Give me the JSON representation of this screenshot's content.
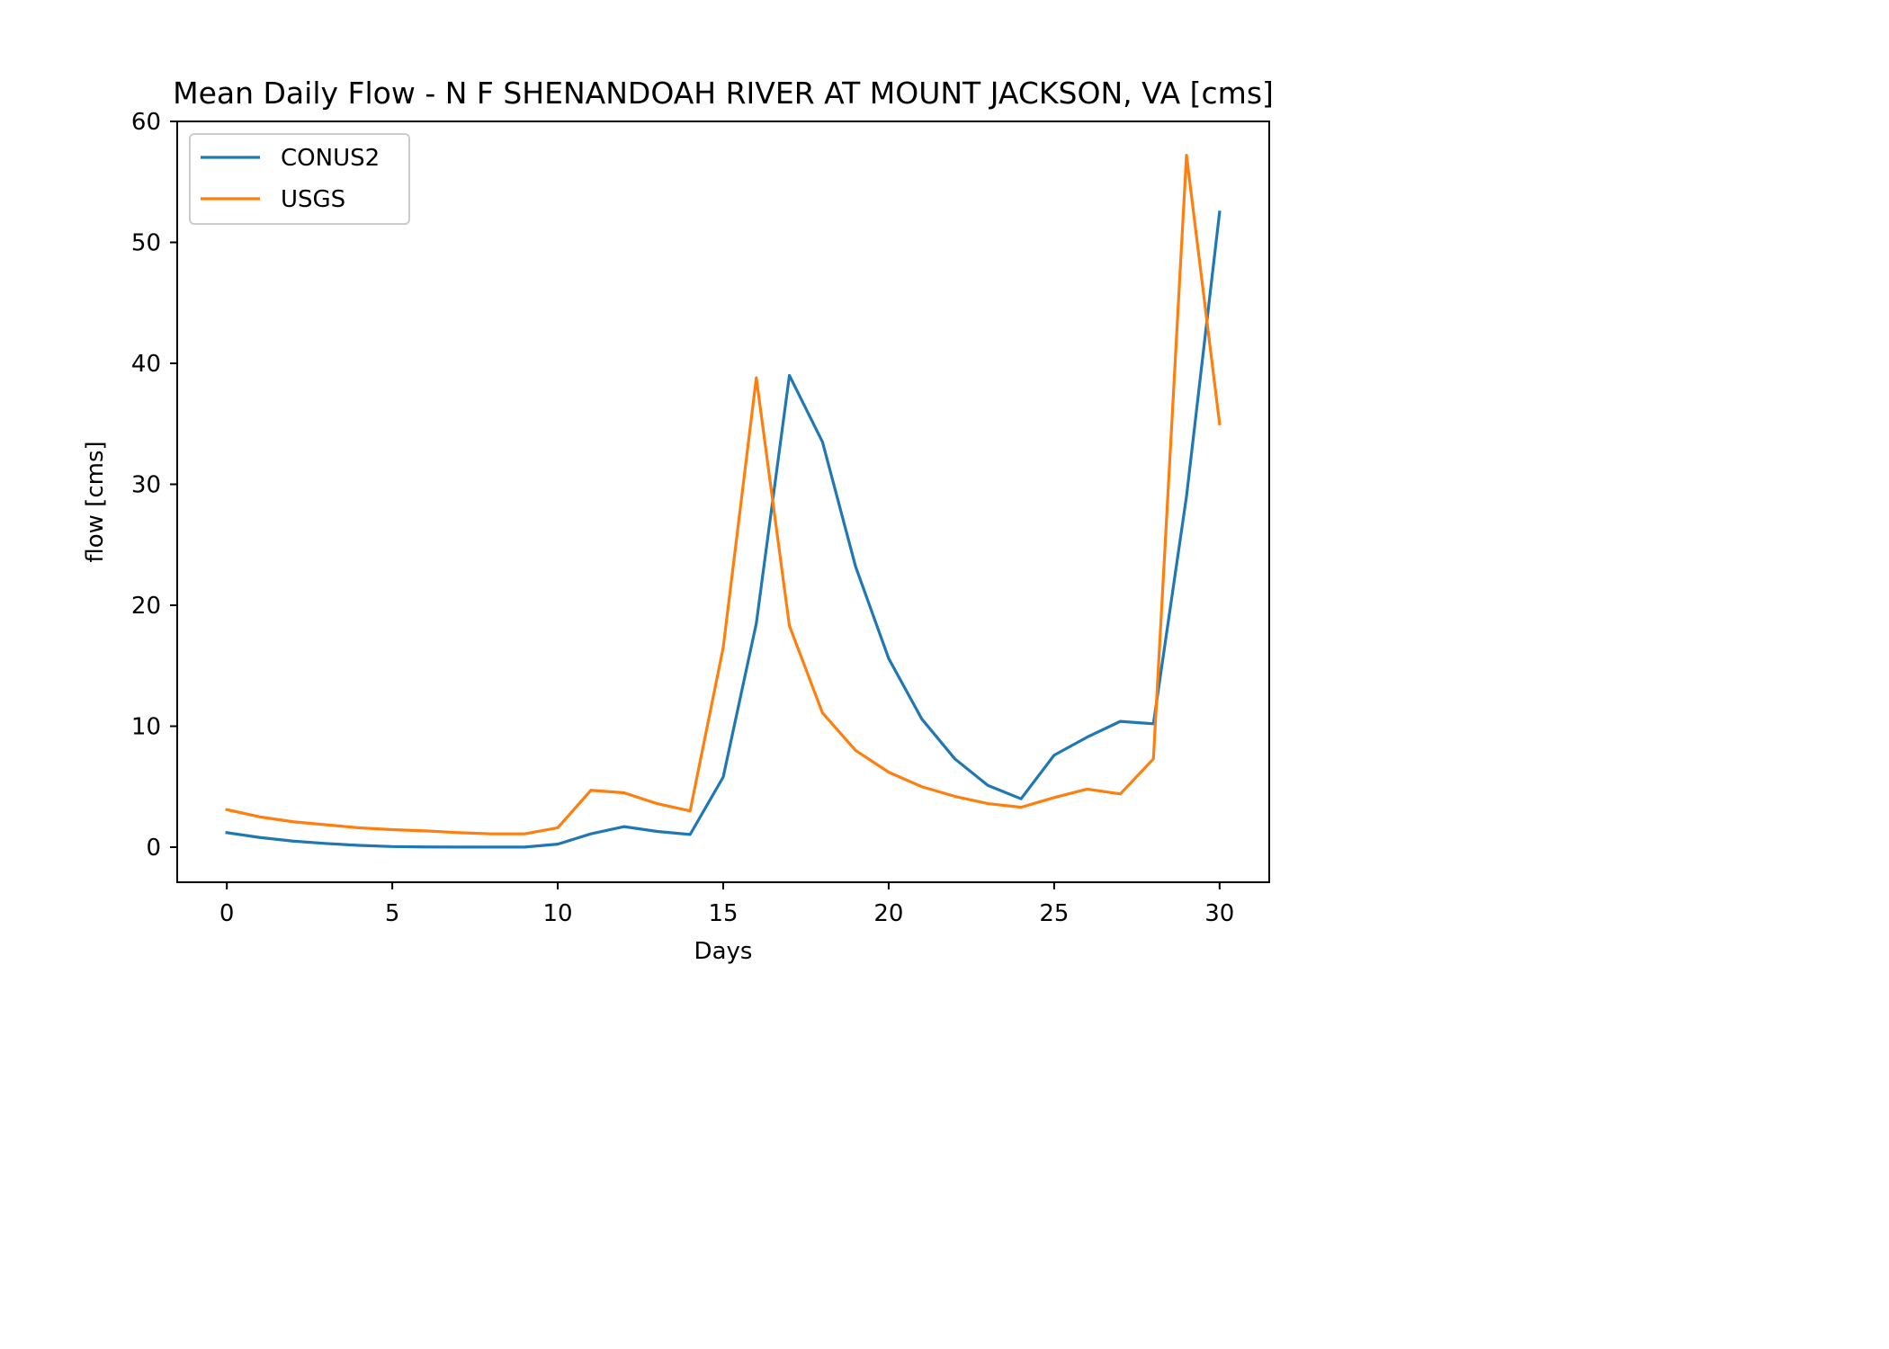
{
  "chart_data": {
    "type": "line",
    "title": "Mean Daily Flow - N F SHENANDOAH RIVER AT MOUNT JACKSON, VA [cms]",
    "xlabel": "Days",
    "ylabel": "flow [cms]",
    "xlim": [
      -1.5,
      31.5
    ],
    "ylim": [
      -2.9,
      60
    ],
    "xticks": [
      0,
      5,
      10,
      15,
      20,
      25,
      30
    ],
    "yticks": [
      0,
      10,
      20,
      30,
      40,
      50,
      60
    ],
    "grid": false,
    "legend_position": "top-left",
    "x": [
      0,
      1,
      2,
      3,
      4,
      5,
      6,
      7,
      8,
      9,
      10,
      11,
      12,
      13,
      14,
      15,
      16,
      17,
      18,
      19,
      20,
      21,
      22,
      23,
      24,
      25,
      26,
      27,
      28,
      29,
      30
    ],
    "series": [
      {
        "name": "CONUS2",
        "color": "#1f77b4",
        "values": [
          1.2,
          0.8,
          0.5,
          0.3,
          0.15,
          0.05,
          0.02,
          0.01,
          0.01,
          0.01,
          0.25,
          1.1,
          1.7,
          1.3,
          1.05,
          5.8,
          18.5,
          39.0,
          33.5,
          23.2,
          15.6,
          10.6,
          7.3,
          5.1,
          4.0,
          7.6,
          9.1,
          10.4,
          10.2,
          29.0,
          52.5
        ]
      },
      {
        "name": "USGS",
        "color": "#ff7f0e",
        "values": [
          3.1,
          2.5,
          2.1,
          1.85,
          1.6,
          1.45,
          1.35,
          1.2,
          1.1,
          1.1,
          1.6,
          4.7,
          4.5,
          3.6,
          3.0,
          16.5,
          38.8,
          18.3,
          11.1,
          8.0,
          6.2,
          5.0,
          4.2,
          3.6,
          3.3,
          4.1,
          4.8,
          4.4,
          7.3,
          57.2,
          35.0
        ]
      }
    ]
  }
}
